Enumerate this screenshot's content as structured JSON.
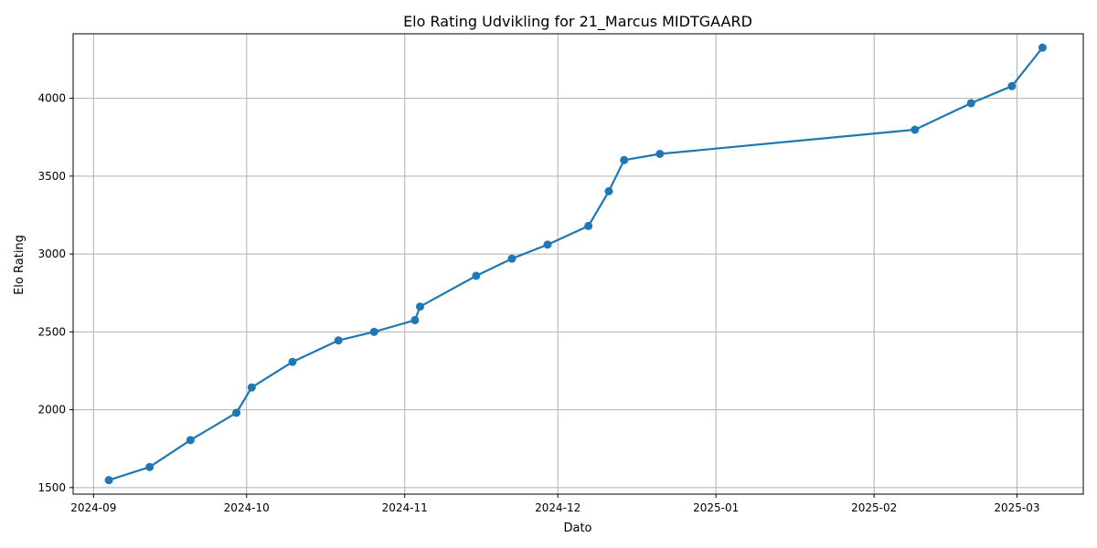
{
  "chart_data": {
    "type": "line",
    "title": "Elo Rating Udvikling for 21_Marcus MIDTGAARD",
    "xlabel": "Dato",
    "ylabel": "Elo Rating",
    "x_ticks": [
      "2024-09",
      "2024-10",
      "2024-11",
      "2024-12",
      "2025-01",
      "2025-02",
      "2025-03"
    ],
    "y_ticks": [
      1500,
      2000,
      2500,
      3000,
      3500,
      4000
    ],
    "grid": true,
    "colors": {
      "line": "#1f77b4",
      "grid": "#b0b0b0",
      "axes": "#000000"
    },
    "series": [
      {
        "x": [
          "2024-09-04",
          "2024-09-12",
          "2024-09-20",
          "2024-09-29",
          "2024-10-02",
          "2024-10-10",
          "2024-10-19",
          "2024-10-26",
          "2024-11-03",
          "2024-11-04",
          "2024-11-15",
          "2024-11-22",
          "2024-11-29",
          "2024-12-07",
          "2024-12-11",
          "2024-12-14",
          "2024-12-21",
          "2025-02-09",
          "2025-02-20",
          "2025-02-28",
          "2025-03-06"
        ],
        "values": [
          1548,
          1632,
          1805,
          1980,
          2143,
          2307,
          2445,
          2500,
          2575,
          2662,
          2860,
          2970,
          3060,
          3180,
          3403,
          3603,
          3643,
          3798,
          3968,
          4078,
          4325
        ]
      }
    ]
  }
}
